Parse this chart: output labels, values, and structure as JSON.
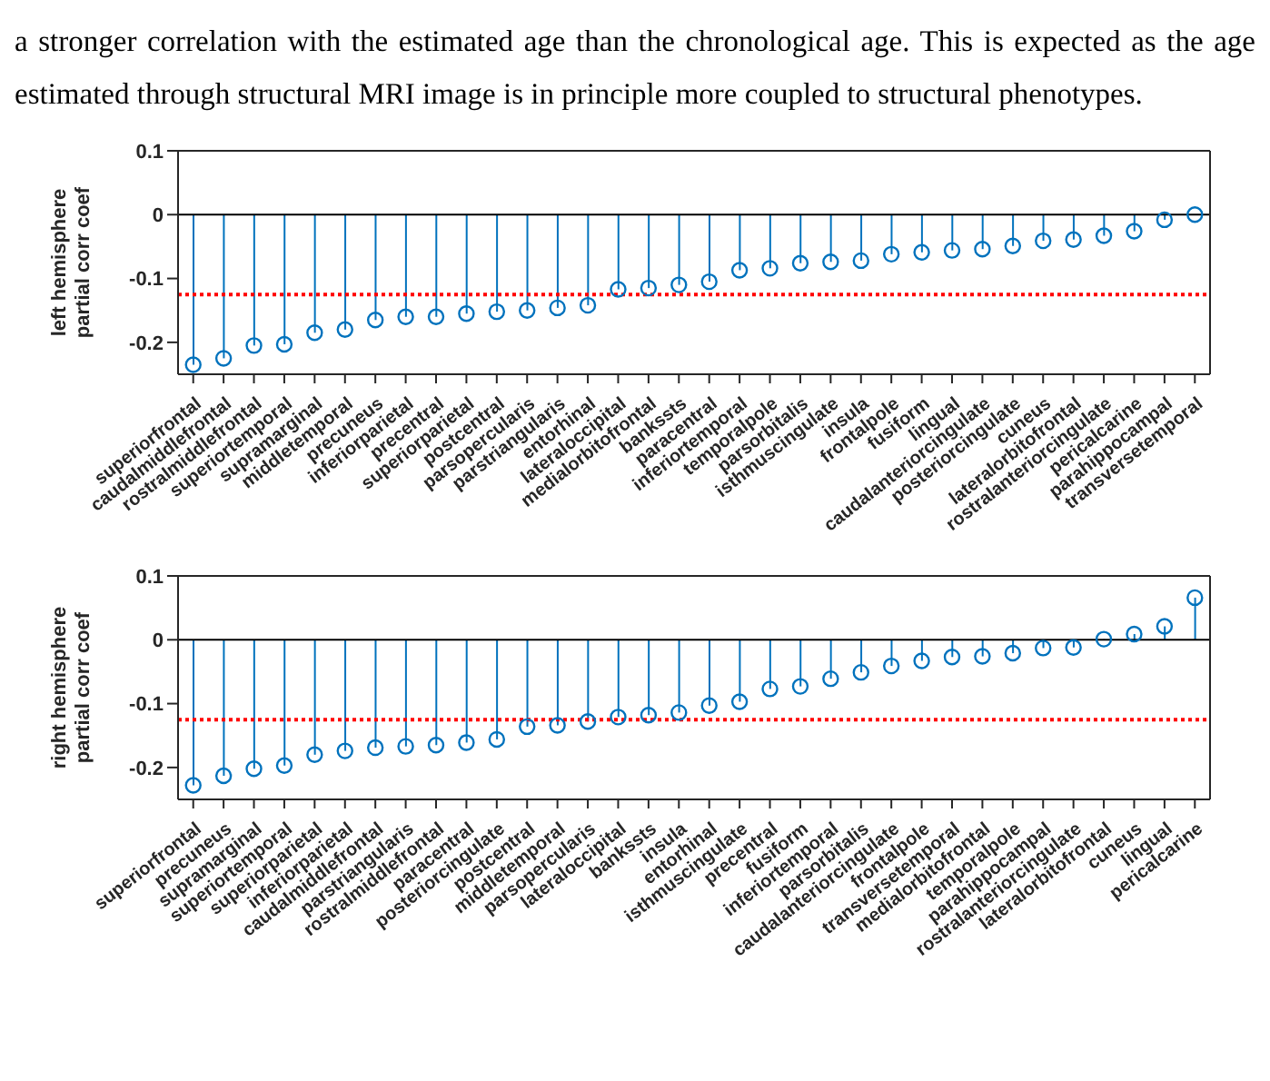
{
  "chart_data": [
    {
      "type": "lollipop",
      "annotations": [
        "a stronger correlation with the estimated age than the chronological age. This is expected as the age estimated through structural MRI image is in principle more coupled to structural phenotypes."
      ],
      "ylabel": "left hemisphere partial corr coef",
      "categories": [
        "superiorfrontal",
        "caudalmiddlefrontal",
        "rostralmiddlefrontal",
        "superiortemporal",
        "supramarginal",
        "middletemporal",
        "precuneus",
        "inferiorparietal",
        "precentral",
        "superiorparietal",
        "postcentral",
        "parsopercularis",
        "parstriangularis",
        "entorhinal",
        "lateraloccipital",
        "medialorbitofrontal",
        "bankssts",
        "paracentral",
        "inferiortemporal",
        "temporalpole",
        "parsorbitalis",
        "isthmuscingulate",
        "insula",
        "frontalpole",
        "fusiform",
        "lingual",
        "caudalanteriorcingulate",
        "posteriorcingulate",
        "cuneus",
        "lateralorbitofrontal",
        "rostralanteriorcingulate",
        "pericalcarine",
        "parahippocampal",
        "transversetemporal"
      ],
      "series": [
        {
          "color": "#0072bd",
          "values": [
            -0.235,
            -0.225,
            -0.205,
            -0.203,
            -0.185,
            -0.18,
            -0.165,
            -0.16,
            -0.16,
            -0.155,
            -0.152,
            -0.15,
            -0.146,
            -0.142,
            -0.117,
            -0.115,
            -0.11,
            -0.105,
            -0.087,
            -0.084,
            -0.076,
            -0.074,
            -0.072,
            -0.062,
            -0.059,
            -0.056,
            -0.054,
            -0.049,
            -0.041,
            -0.039,
            -0.033,
            -0.026,
            -0.008,
            0
          ]
        }
      ],
      "ylim": [
        -0.25,
        0.1
      ],
      "yticks": [
        -0.2,
        -0.1,
        0,
        0.1
      ],
      "marker": "circle",
      "grid": false,
      "legend": false,
      "ref_lines": [
        {
          "axis": "y",
          "value": 0,
          "color": "#000000",
          "line_style": "solid"
        },
        {
          "axis": "y",
          "value": -0.125,
          "color": "#ff0000",
          "line_style": "dotted"
        }
      ]
    },
    {
      "type": "lollipop",
      "ylabel": "right hemisphere partial corr coef",
      "categories": [
        "superiorfrontal",
        "precuneus",
        "supramarginal",
        "superiortemporal",
        "superiorparietal",
        "inferiorparietal",
        "caudalmiddlefrontal",
        "parstriangularis",
        "rostralmiddlefrontal",
        "paracentral",
        "posteriorcingulate",
        "postcentral",
        "middletemporal",
        "parsopercularis",
        "lateraloccipital",
        "bankssts",
        "insula",
        "entorhinal",
        "isthmuscingulate",
        "precentral",
        "fusiform",
        "inferiortemporal",
        "parsorbitalis",
        "caudalanteriorcingulate",
        "frontalpole",
        "transversetemporal",
        "medialorbitofrontal",
        "temporalpole",
        "parahippocampal",
        "rostralanteriorcingulate",
        "lateralorbitofrontal",
        "cuneus",
        "lingual",
        "pericalcarine"
      ],
      "series": [
        {
          "color": "#0072bd",
          "values": [
            -0.228,
            -0.213,
            -0.202,
            -0.197,
            -0.18,
            -0.174,
            -0.169,
            -0.167,
            -0.165,
            -0.161,
            -0.156,
            -0.136,
            -0.134,
            -0.128,
            -0.121,
            -0.118,
            -0.114,
            -0.103,
            -0.097,
            -0.077,
            -0.073,
            -0.061,
            -0.051,
            -0.041,
            -0.033,
            -0.027,
            -0.026,
            -0.021,
            -0.013,
            -0.012,
            0.001,
            0.009,
            0.021,
            0.066
          ]
        }
      ],
      "ylim": [
        -0.25,
        0.1
      ],
      "yticks": [
        -0.2,
        -0.1,
        0,
        0.1
      ],
      "marker": "circle",
      "grid": false,
      "legend": false,
      "ref_lines": [
        {
          "axis": "y",
          "value": 0,
          "color": "#000000",
          "line_style": "solid"
        },
        {
          "axis": "y",
          "value": -0.125,
          "color": "#ff0000",
          "line_style": "dotted"
        }
      ]
    }
  ]
}
